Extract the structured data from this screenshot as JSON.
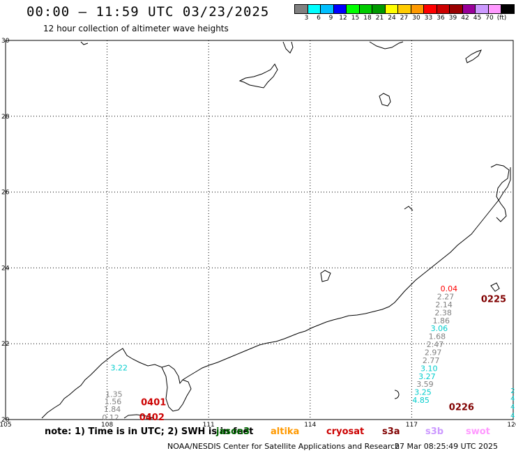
{
  "header": {
    "title": "00:00 – 11:59 UTC 03/23/2025",
    "subtitle": "12 hour collection of altimeter wave heights"
  },
  "colorbar": {
    "colors": [
      "#808080",
      "#00ffff",
      "#00bfff",
      "#0000ff",
      "#00ff00",
      "#00cc00",
      "#009900",
      "#ffff00",
      "#ffcc00",
      "#ff9900",
      "#ff0000",
      "#cc0000",
      "#990000",
      "#990099",
      "#cc99ff",
      "#ff99ff",
      "#000000"
    ],
    "labels": [
      "3",
      "6",
      "9",
      "12",
      "15",
      "18",
      "21",
      "24",
      "27",
      "30",
      "33",
      "36",
      "39",
      "42",
      "45",
      "70",
      "(ft)"
    ]
  },
  "axes": {
    "lat_ticks": [
      "30",
      "28",
      "26",
      "24",
      "22",
      "20"
    ],
    "lon_ticks": [
      "105",
      "108",
      "111",
      "114",
      "117",
      "120"
    ]
  },
  "observations": [
    {
      "text": "0.04",
      "color": "#ff0000",
      "lon": 117.85,
      "lat": 23.38
    },
    {
      "text": "2.27",
      "color": "#808080",
      "lon": 117.75,
      "lat": 23.17
    },
    {
      "text": "2.14",
      "color": "#808080",
      "lon": 117.7,
      "lat": 22.96
    },
    {
      "text": "2.38",
      "color": "#808080",
      "lon": 117.68,
      "lat": 22.75
    },
    {
      "text": "1.86",
      "color": "#808080",
      "lon": 117.62,
      "lat": 22.54
    },
    {
      "text": "3.06",
      "color": "#00cccc",
      "lon": 117.56,
      "lat": 22.33
    },
    {
      "text": "1.68",
      "color": "#808080",
      "lon": 117.5,
      "lat": 22.12
    },
    {
      "text": "2.47",
      "color": "#808080",
      "lon": 117.44,
      "lat": 21.91
    },
    {
      "text": "2.97",
      "color": "#808080",
      "lon": 117.38,
      "lat": 21.7
    },
    {
      "text": "2.77",
      "color": "#808080",
      "lon": 117.32,
      "lat": 21.49
    },
    {
      "text": "3.10",
      "color": "#00cccc",
      "lon": 117.26,
      "lat": 21.28
    },
    {
      "text": "3.27",
      "color": "#00cccc",
      "lon": 117.2,
      "lat": 21.07
    },
    {
      "text": "3.59",
      "color": "#808080",
      "lon": 117.14,
      "lat": 20.86
    },
    {
      "text": "3.25",
      "color": "#00cccc",
      "lon": 117.08,
      "lat": 20.65
    },
    {
      "text": "4.85",
      "color": "#00cccc",
      "lon": 117.02,
      "lat": 20.44
    },
    {
      "text": "3.22",
      "color": "#00cccc",
      "lon": 108.1,
      "lat": 21.3
    },
    {
      "text": "1.35",
      "color": "#808080",
      "lon": 107.95,
      "lat": 20.6
    },
    {
      "text": "1.56",
      "color": "#808080",
      "lon": 107.92,
      "lat": 20.4
    },
    {
      "text": "1.84",
      "color": "#808080",
      "lon": 107.9,
      "lat": 20.2
    },
    {
      "text": "0.12",
      "color": "#808080",
      "lon": 107.85,
      "lat": 19.98
    }
  ],
  "track_labels": [
    {
      "text": "0225",
      "color": "#800000",
      "lon": 119.05,
      "lat": 23.1
    },
    {
      "text": "0226",
      "color": "#800000",
      "lon": 118.1,
      "lat": 20.25
    },
    {
      "text": "0401",
      "color": "#cc0000",
      "lon": 109.0,
      "lat": 20.38
    },
    {
      "text": "0402",
      "color": "#cc0000",
      "lon": 108.95,
      "lat": 19.98
    }
  ],
  "edge_values": [
    {
      "text": "2",
      "color": "#00cccc",
      "lon": 119.92,
      "lat": 20.7
    },
    {
      "text": "4",
      "color": "#00cccc",
      "lon": 119.92,
      "lat": 20.5
    },
    {
      "text": "4",
      "color": "#00cccc",
      "lon": 119.92,
      "lat": 20.28
    },
    {
      "text": "4",
      "color": "#00cccc",
      "lon": 119.92,
      "lat": 20.05
    }
  ],
  "note": "note: 1) Time is in UTC; 2) SWH is in feet",
  "satellites": [
    {
      "name": "jason3",
      "color": "#006600"
    },
    {
      "name": "altika",
      "color": "#ff9900"
    },
    {
      "name": "cryosat",
      "color": "#cc0000"
    },
    {
      "name": "s3a",
      "color": "#800000"
    },
    {
      "name": "s3b",
      "color": "#cc99ff"
    },
    {
      "name": "swot",
      "color": "#ff99ff"
    }
  ],
  "footer": {
    "source": "NOAA/NESDIS Center for Satellite Applications and Research",
    "timestamp": "27 Mar 08:25:49 UTC 2025"
  }
}
